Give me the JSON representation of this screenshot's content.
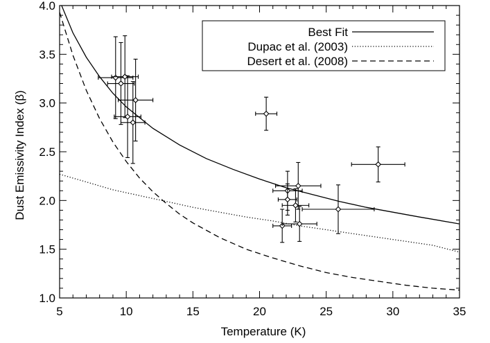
{
  "chart_data": {
    "type": "scatter",
    "title": "",
    "xlabel": "Temperature (K)",
    "ylabel": "Dust Emissivity Index (β)",
    "xlim": [
      5,
      35
    ],
    "ylim": [
      1.0,
      4.0
    ],
    "xticks": [
      5,
      10,
      15,
      20,
      25,
      30,
      35
    ],
    "xtick_labels": [
      "5",
      "10",
      "15",
      "20",
      "25",
      "30",
      "35"
    ],
    "yticks": [
      1.0,
      1.5,
      2.0,
      2.5,
      3.0,
      3.5,
      4.0
    ],
    "ytick_labels": [
      "1.0",
      "1.5",
      "2.0",
      "2.5",
      "3.0",
      "3.5",
      "4.0"
    ],
    "grid": false,
    "legend_position": "top-right",
    "series": [
      {
        "name": "Best Fit",
        "kind": "line",
        "style": "solid",
        "x": [
          5,
          6,
          7,
          8,
          9,
          10,
          12,
          14,
          16,
          18,
          20,
          22,
          24,
          26,
          28,
          30,
          32,
          35
        ],
        "y": [
          4.05,
          3.72,
          3.47,
          3.27,
          3.1,
          2.96,
          2.74,
          2.57,
          2.43,
          2.32,
          2.22,
          2.13,
          2.06,
          1.99,
          1.93,
          1.88,
          1.83,
          1.76
        ]
      },
      {
        "name": "Dupac et al. (2003)",
        "kind": "line",
        "style": "dotted",
        "x": [
          5,
          7,
          9,
          11,
          13,
          15,
          17,
          19,
          21,
          23,
          25,
          27,
          29,
          31,
          33,
          35
        ],
        "y": [
          2.27,
          2.19,
          2.11,
          2.05,
          1.99,
          1.93,
          1.88,
          1.83,
          1.79,
          1.74,
          1.7,
          1.66,
          1.62,
          1.58,
          1.54,
          1.47
        ]
      },
      {
        "name": "Desert et al. (2008)",
        "kind": "line",
        "style": "dashed",
        "x": [
          5,
          6,
          7,
          8,
          9,
          10,
          11,
          12,
          13,
          14,
          15,
          17,
          19,
          21,
          23,
          25,
          27,
          29,
          31,
          33,
          35
        ],
        "y": [
          3.93,
          3.49,
          3.13,
          2.84,
          2.6,
          2.4,
          2.23,
          2.09,
          1.97,
          1.86,
          1.77,
          1.62,
          1.5,
          1.41,
          1.33,
          1.26,
          1.21,
          1.17,
          1.13,
          1.1,
          1.08
        ]
      },
      {
        "kind": "points",
        "marker": "diamond",
        "points": [
          {
            "x": 9.2,
            "y": 3.26,
            "xerr": 1.3,
            "yerr": 0.42
          },
          {
            "x": 9.6,
            "y": 3.2,
            "xerr": 1.0,
            "yerr": 0.42
          },
          {
            "x": 9.9,
            "y": 3.27,
            "xerr": 1.0,
            "yerr": 0.42
          },
          {
            "x": 10.1,
            "y": 2.86,
            "xerr": 1.0,
            "yerr": 0.42
          },
          {
            "x": 10.5,
            "y": 2.8,
            "xerr": 0.9,
            "yerr": 0.42
          },
          {
            "x": 10.7,
            "y": 3.03,
            "xerr": 1.3,
            "yerr": 0.42
          },
          {
            "x": 20.5,
            "y": 2.89,
            "xerr": 0.8,
            "yerr": 0.17
          },
          {
            "x": 22.1,
            "y": 2.1,
            "xerr": 1.1,
            "yerr": 0.2
          },
          {
            "x": 22.1,
            "y": 2.01,
            "xerr": 0.7,
            "yerr": 0.16
          },
          {
            "x": 22.7,
            "y": 1.95,
            "xerr": 1.0,
            "yerr": 0.17
          },
          {
            "x": 22.9,
            "y": 2.15,
            "xerr": 1.7,
            "yerr": 0.24
          },
          {
            "x": 21.7,
            "y": 1.74,
            "xerr": 0.7,
            "yerr": 0.17
          },
          {
            "x": 23.0,
            "y": 1.76,
            "xerr": 1.3,
            "yerr": 0.18
          },
          {
            "x": 25.9,
            "y": 1.91,
            "xerr": 2.7,
            "yerr": 0.25
          },
          {
            "x": 28.9,
            "y": 2.37,
            "xerr": 2.0,
            "yerr": 0.18
          }
        ]
      }
    ]
  }
}
